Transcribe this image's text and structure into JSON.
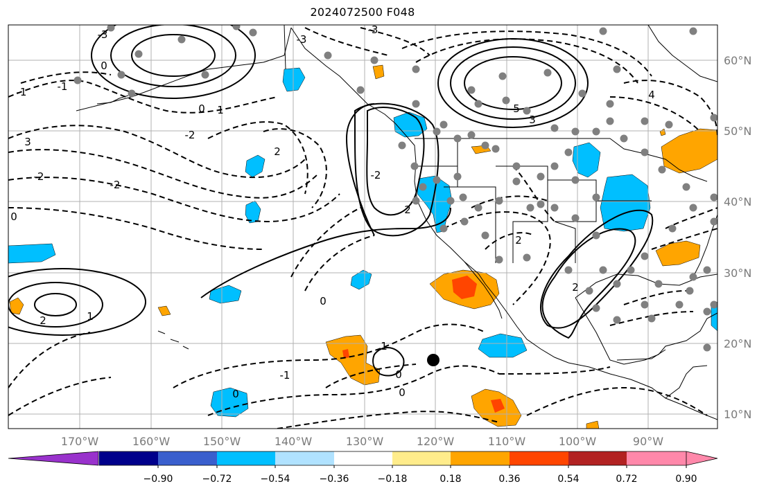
{
  "title": "2024072500 F048",
  "colors": {
    "neg_strong": "#00bfff",
    "pos_medium": "#ffa500",
    "pos_strong": "#ff4500",
    "contour": "#000000",
    "grid": "#b0b0b0",
    "coast": "#000000",
    "station": "#808080"
  },
  "lat_labels": [
    "60°N",
    "50°N",
    "40°N",
    "30°N",
    "20°N",
    "10°N"
  ],
  "lon_labels": [
    "170°W",
    "160°W",
    "150°W",
    "140°W",
    "130°W",
    "120°W",
    "110°W",
    "100°W",
    "90°W"
  ],
  "colorbar": {
    "colors": [
      "#9932cc",
      "#00008b",
      "#3a5fcd",
      "#00bfff",
      "#b0e2ff",
      "#ffffff",
      "#ffec8b",
      "#ffa500",
      "#ff4500",
      "#b22222",
      "#ff88aa",
      "#ff88aa"
    ],
    "ticks": [
      "−0.90",
      "−0.72",
      "−0.54",
      "−0.36",
      "−0.18",
      "0.18",
      "0.36",
      "0.54",
      "0.72",
      "0.90"
    ],
    "extend": "both"
  },
  "contour_labels": [
    "-3",
    "-3",
    "-3",
    "-2",
    "-2",
    "-2",
    "-2",
    "-1",
    "-1",
    "-1",
    "0",
    "0",
    "0",
    "0",
    "0",
    "0",
    "0",
    "1",
    "1",
    "1",
    "2",
    "2",
    "2",
    "2",
    "2",
    "3",
    "3",
    "4",
    "5"
  ],
  "marker": "storm-center-dot"
}
